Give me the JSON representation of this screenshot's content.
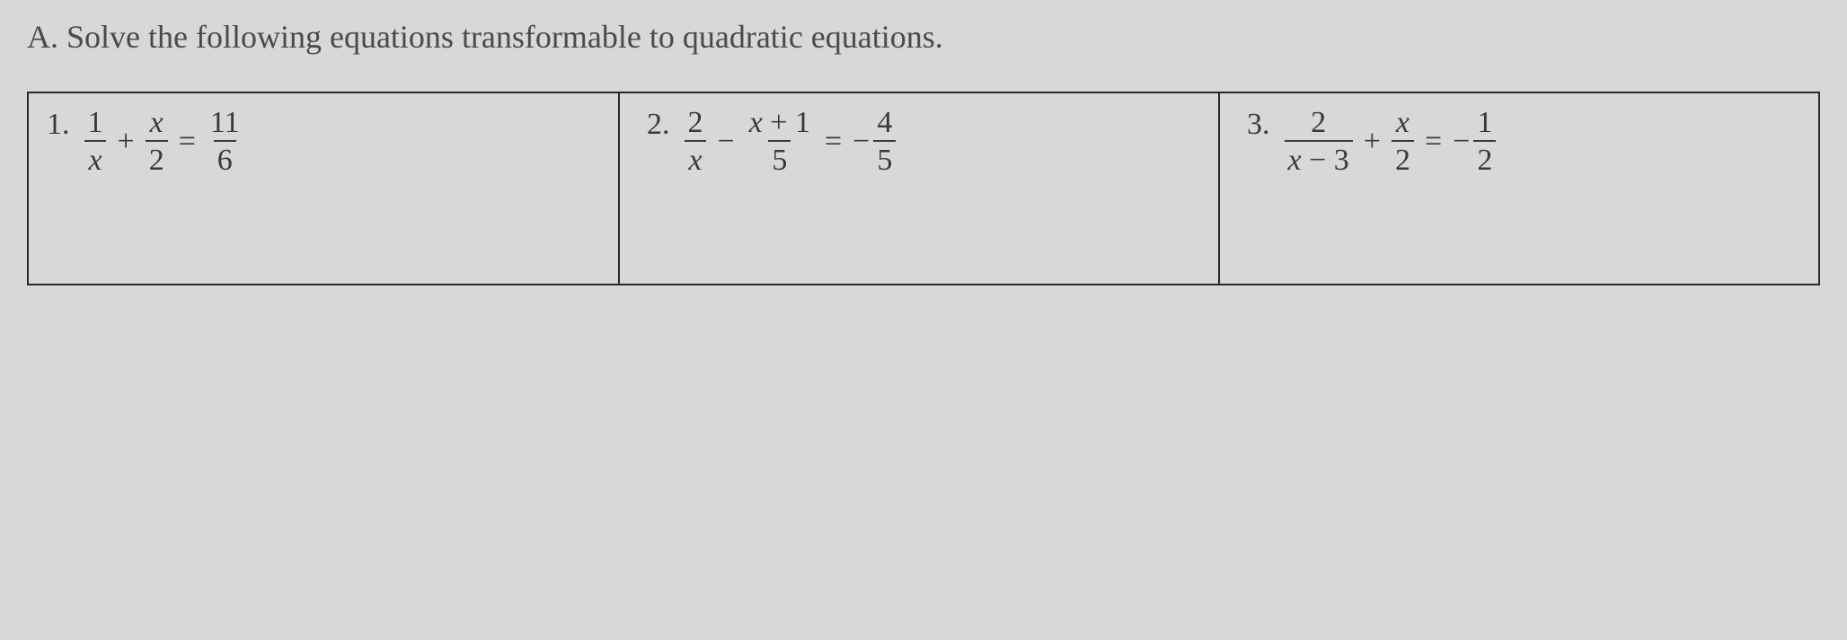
{
  "page": {
    "background_color": "#d8d9d6",
    "text_color": "#3a3a3a",
    "border_color": "#2a2a2a",
    "font_family": "Georgia, serif",
    "prompt_fontsize": 36,
    "equation_fontsize": 34
  },
  "section": {
    "label": "A.",
    "prompt": "Solve the following equations transformable to quadratic equations."
  },
  "problems": [
    {
      "number": "1.",
      "equation": {
        "type": "rational-equation",
        "terms": [
          {
            "numerator": "1",
            "denominator": "x"
          },
          {
            "operator": "+"
          },
          {
            "numerator": "x",
            "denominator": "2"
          },
          {
            "operator": "="
          },
          {
            "numerator": "11",
            "denominator": "6"
          }
        ]
      }
    },
    {
      "number": "2.",
      "equation": {
        "type": "rational-equation",
        "terms": [
          {
            "numerator": "2",
            "denominator": "x"
          },
          {
            "operator": "−"
          },
          {
            "numerator": "x + 1",
            "denominator": "5"
          },
          {
            "operator": "="
          },
          {
            "negative": true,
            "numerator": "4",
            "denominator": "5"
          }
        ]
      }
    },
    {
      "number": "3.",
      "equation": {
        "type": "rational-equation",
        "terms": [
          {
            "numerator": "2",
            "denominator": "x − 3"
          },
          {
            "operator": "+"
          },
          {
            "numerator": "x",
            "denominator": "2"
          },
          {
            "operator": "="
          },
          {
            "negative": true,
            "numerator": "1",
            "denominator": "2"
          }
        ]
      }
    }
  ]
}
